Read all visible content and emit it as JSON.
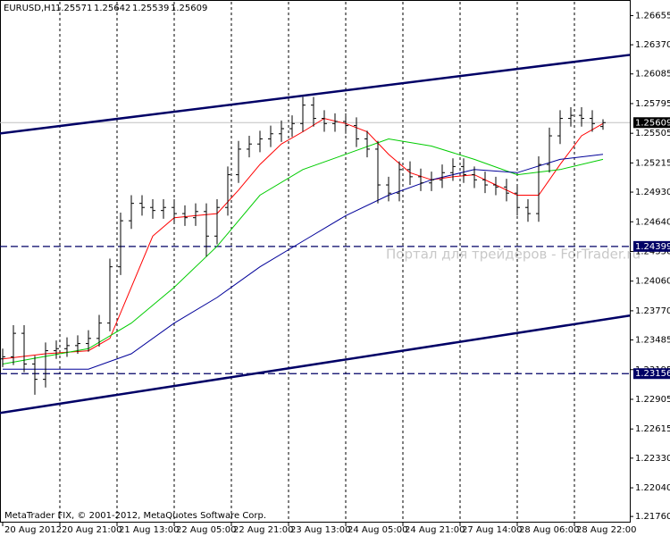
{
  "chart_data": {
    "type": "ohlc",
    "symbol": "EURUSD,H1",
    "watermark": "Портал для трейдеров - ForTrader.ru",
    "footer": "MetaTrader FIX, © 2001-2012, MetaQuotes Software Corp.",
    "bar_color": "#000000",
    "grid": true,
    "xlim": [
      -0.75,
      175.5
    ],
    "xticks": [
      {
        "value": 0,
        "label": "20 Aug 2012"
      },
      {
        "value": 16,
        "label": "20 Aug 21:00"
      },
      {
        "value": 32,
        "label": "21 Aug 13:00"
      },
      {
        "value": 48,
        "label": "22 Aug 05:00"
      },
      {
        "value": 64,
        "label": "22 Aug 21:00"
      },
      {
        "value": 80,
        "label": "23 Aug 13:00"
      },
      {
        "value": 96,
        "label": "24 Aug 05:00"
      },
      {
        "value": 112,
        "label": "24 Aug 21:00"
      },
      {
        "value": 128,
        "label": "27 Aug 14:00"
      },
      {
        "value": 144,
        "label": "28 Aug 06:00"
      },
      {
        "value": 160,
        "label": "28 Aug 22:00"
      }
    ],
    "ylim": [
      1.217,
      1.2679
    ],
    "yticks": [
      1.26655,
      {
        "value": 1.2637,
        "label": "1.26370"
      },
      1.26085,
      1.25795,
      1.25505,
      1.25215,
      {
        "value": 1.2493,
        "label": "1.24930"
      },
      {
        "value": 1.2464,
        "label": "1.24640"
      },
      {
        "value": 1.2435,
        "label": "1.24350"
      },
      {
        "value": 1.2406,
        "label": "1.24060"
      },
      {
        "value": 1.2377,
        "label": "1.23770"
      },
      1.23485,
      1.23195,
      1.22905,
      1.22615,
      {
        "value": 1.2233,
        "label": "1.22330"
      },
      {
        "value": 1.2204,
        "label": "1.22040"
      },
      {
        "value": 1.2176,
        "label": "1.21760"
      }
    ],
    "x": [
      0,
      3,
      6,
      9,
      12,
      15,
      18,
      21,
      24,
      27,
      30,
      33,
      36,
      39,
      42,
      45,
      48,
      51,
      54,
      57,
      60,
      63,
      66,
      69,
      72,
      75,
      78,
      81,
      84,
      87,
      90,
      93,
      96,
      99,
      102,
      105,
      108,
      111,
      114,
      117,
      120,
      123,
      126,
      129,
      132,
      135,
      138,
      141,
      144,
      147,
      150,
      153,
      156,
      159,
      162,
      165,
      168
    ],
    "open": [
      1.233,
      1.2332,
      1.2355,
      1.2325,
      1.231,
      1.2338,
      1.234,
      1.2343,
      1.2345,
      1.235,
      1.2365,
      1.242,
      1.2465,
      1.2482,
      1.2478,
      1.2475,
      1.2478,
      1.2472,
      1.2468,
      1.2474,
      1.245,
      1.2478,
      1.251,
      1.2535,
      1.254,
      1.2545,
      1.255,
      1.2555,
      1.256,
      1.2578,
      1.2565,
      1.256,
      1.2562,
      1.2558,
      1.2545,
      1.2535,
      1.25,
      1.2492,
      1.2515,
      1.2508,
      1.2502,
      1.2505,
      1.2512,
      1.2518,
      1.251,
      1.2505,
      1.25,
      1.2498,
      1.2492,
      1.2478,
      1.2472,
      1.252,
      1.2548,
      1.2565,
      1.2568,
      1.2565,
      1.25571
    ],
    "high": [
      1.234,
      1.2363,
      1.2363,
      1.2333,
      1.2346,
      1.2348,
      1.2351,
      1.2353,
      1.2358,
      1.2373,
      1.2428,
      1.2473,
      1.249,
      1.249,
      1.2486,
      1.2486,
      1.2486,
      1.248,
      1.2482,
      1.2482,
      1.2486,
      1.2518,
      1.2543,
      1.2548,
      1.2553,
      1.2558,
      1.2563,
      1.2568,
      1.2586,
      1.2586,
      1.2573,
      1.257,
      1.257,
      1.2566,
      1.2553,
      1.2543,
      1.2508,
      1.2523,
      1.2523,
      1.2516,
      1.2513,
      1.252,
      1.2526,
      1.2526,
      1.2518,
      1.2513,
      1.2508,
      1.2506,
      1.25,
      1.2486,
      1.2528,
      1.2556,
      1.2573,
      1.2576,
      1.2576,
      1.2573,
      1.25642
    ],
    "low": [
      1.2322,
      1.2324,
      1.2317,
      1.2295,
      1.2302,
      1.233,
      1.2332,
      1.2335,
      1.2337,
      1.2342,
      1.2357,
      1.2412,
      1.2457,
      1.247,
      1.2467,
      1.2467,
      1.2464,
      1.246,
      1.246,
      1.243,
      1.2442,
      1.247,
      1.2502,
      1.2527,
      1.2532,
      1.2537,
      1.2542,
      1.2547,
      1.2552,
      1.2557,
      1.2552,
      1.2552,
      1.255,
      1.2537,
      1.2527,
      1.2482,
      1.2484,
      1.2484,
      1.25,
      1.2494,
      1.2494,
      1.2497,
      1.2504,
      1.2502,
      1.2497,
      1.2492,
      1.249,
      1.2484,
      1.247,
      1.2464,
      1.2464,
      1.2512,
      1.254,
      1.2557,
      1.2557,
      1.2552,
      1.25539
    ],
    "close": [
      1.2332,
      1.2355,
      1.2325,
      1.231,
      1.2338,
      1.234,
      1.2343,
      1.2345,
      1.235,
      1.2365,
      1.242,
      1.2465,
      1.2482,
      1.2478,
      1.2475,
      1.2478,
      1.2472,
      1.2468,
      1.2474,
      1.245,
      1.2478,
      1.251,
      1.2535,
      1.254,
      1.2545,
      1.255,
      1.2555,
      1.256,
      1.2578,
      1.2565,
      1.256,
      1.2562,
      1.2558,
      1.2545,
      1.2535,
      1.25,
      1.2492,
      1.2515,
      1.2508,
      1.2502,
      1.2505,
      1.2512,
      1.2518,
      1.251,
      1.2505,
      1.25,
      1.2498,
      1.2492,
      1.2478,
      1.2472,
      1.252,
      1.2548,
      1.2565,
      1.2568,
      1.2565,
      1.256,
      1.25609
    ],
    "series": [
      {
        "color": "#ff0000",
        "x": [
          0,
          12,
          24,
          30,
          36,
          42,
          48,
          54,
          60,
          66,
          72,
          78,
          84,
          90,
          96,
          102,
          108,
          114,
          120,
          126,
          132,
          138,
          144,
          150,
          156,
          162,
          168
        ],
        "values": [
          1.233,
          1.2335,
          1.2338,
          1.235,
          1.24,
          1.245,
          1.2468,
          1.247,
          1.2472,
          1.2495,
          1.252,
          1.254,
          1.2552,
          1.2565,
          1.256,
          1.2552,
          1.253,
          1.2512,
          1.2505,
          1.2508,
          1.251,
          1.25,
          1.249,
          1.249,
          1.252,
          1.2548,
          1.256
        ]
      },
      {
        "color": "#00cc00",
        "x": [
          0,
          24,
          36,
          48,
          60,
          72,
          84,
          96,
          108,
          120,
          132,
          144,
          156,
          168
        ],
        "values": [
          1.2325,
          1.234,
          1.2365,
          1.24,
          1.244,
          1.249,
          1.2515,
          1.253,
          1.2545,
          1.2538,
          1.2525,
          1.251,
          1.2515,
          1.2525
        ]
      },
      {
        "color": "#000099",
        "x": [
          0,
          24,
          36,
          48,
          60,
          72,
          84,
          96,
          108,
          120,
          132,
          144,
          156,
          168
        ],
        "values": [
          1.232,
          1.232,
          1.2335,
          1.2365,
          1.239,
          1.242,
          1.2445,
          1.247,
          1.249,
          1.2505,
          1.2515,
          1.2512,
          1.2525,
          1.253
        ]
      }
    ],
    "trendlines": [
      {
        "color": "#000066",
        "x": [
          -0.75,
          175.5
        ],
        "y": [
          1.25503,
          1.26271
        ]
      },
      {
        "color": "#000066",
        "x": [
          -0.75,
          175.5
        ],
        "y": [
          1.22772,
          1.23723
        ]
      }
    ],
    "hlines": [
      {
        "value": 1.24399,
        "color": "#000066"
      },
      {
        "value": 1.23156,
        "color": "#000066"
      }
    ],
    "current_price": {
      "value": 1.25609,
      "color": "#000000"
    }
  }
}
